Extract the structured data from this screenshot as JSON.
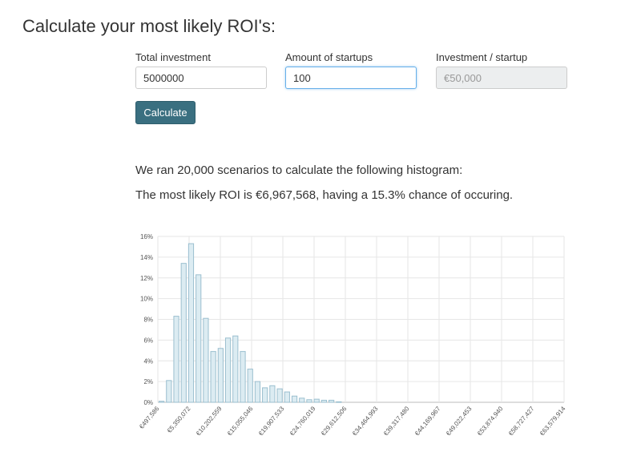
{
  "page": {
    "title": "Calculate your most likely ROI's:"
  },
  "form": {
    "total_investment": {
      "label": "Total investment",
      "value": "5000000"
    },
    "amount_of_startups": {
      "label": "Amount of startups",
      "value": "100"
    },
    "investment_per_startup": {
      "label": "Investment / startup",
      "value": "€50,000"
    },
    "calculate_label": "Calculate"
  },
  "results": {
    "scenarios_text": "We ran 20,000 scenarios to calculate the following histogram:",
    "most_likely_text": "The most likely ROI is €6,967,568, having a 15.3% chance of occuring."
  },
  "colors": {
    "bar_fill": "#dcecf2",
    "bar_stroke": "#9bbfcf",
    "button": "#3a6f80",
    "grid": "#e6e6e6"
  },
  "chart_data": {
    "type": "bar",
    "title": "",
    "xlabel": "",
    "ylabel": "",
    "ylim": [
      0,
      16
    ],
    "y_ticks": [
      "0%",
      "2%",
      "4%",
      "6%",
      "8%",
      "10%",
      "12%",
      "14%",
      "16%"
    ],
    "x_tick_labels": [
      "€497,586",
      "€5,350,072",
      "€10,202,559",
      "€15,055,046",
      "€19,907,533",
      "€24,760,019",
      "€29,612,506",
      "€34,464,993",
      "€39,317,480",
      "€44,169,967",
      "€49,022,453",
      "€53,874,940",
      "€58,727,427",
      "€63,579,914"
    ],
    "values": [
      0.1,
      2.1,
      8.3,
      13.4,
      15.3,
      12.3,
      8.1,
      4.9,
      5.2,
      6.2,
      6.4,
      4.9,
      3.2,
      2.0,
      1.4,
      1.6,
      1.3,
      1.0,
      0.6,
      0.4,
      0.25,
      0.3,
      0.2,
      0.2,
      0.05,
      0,
      0,
      0,
      0,
      0,
      0,
      0,
      0,
      0,
      0,
      0,
      0,
      0,
      0,
      0,
      0,
      0,
      0,
      0,
      0,
      0,
      0,
      0,
      0,
      0,
      0,
      0,
      0,
      0,
      0
    ]
  }
}
